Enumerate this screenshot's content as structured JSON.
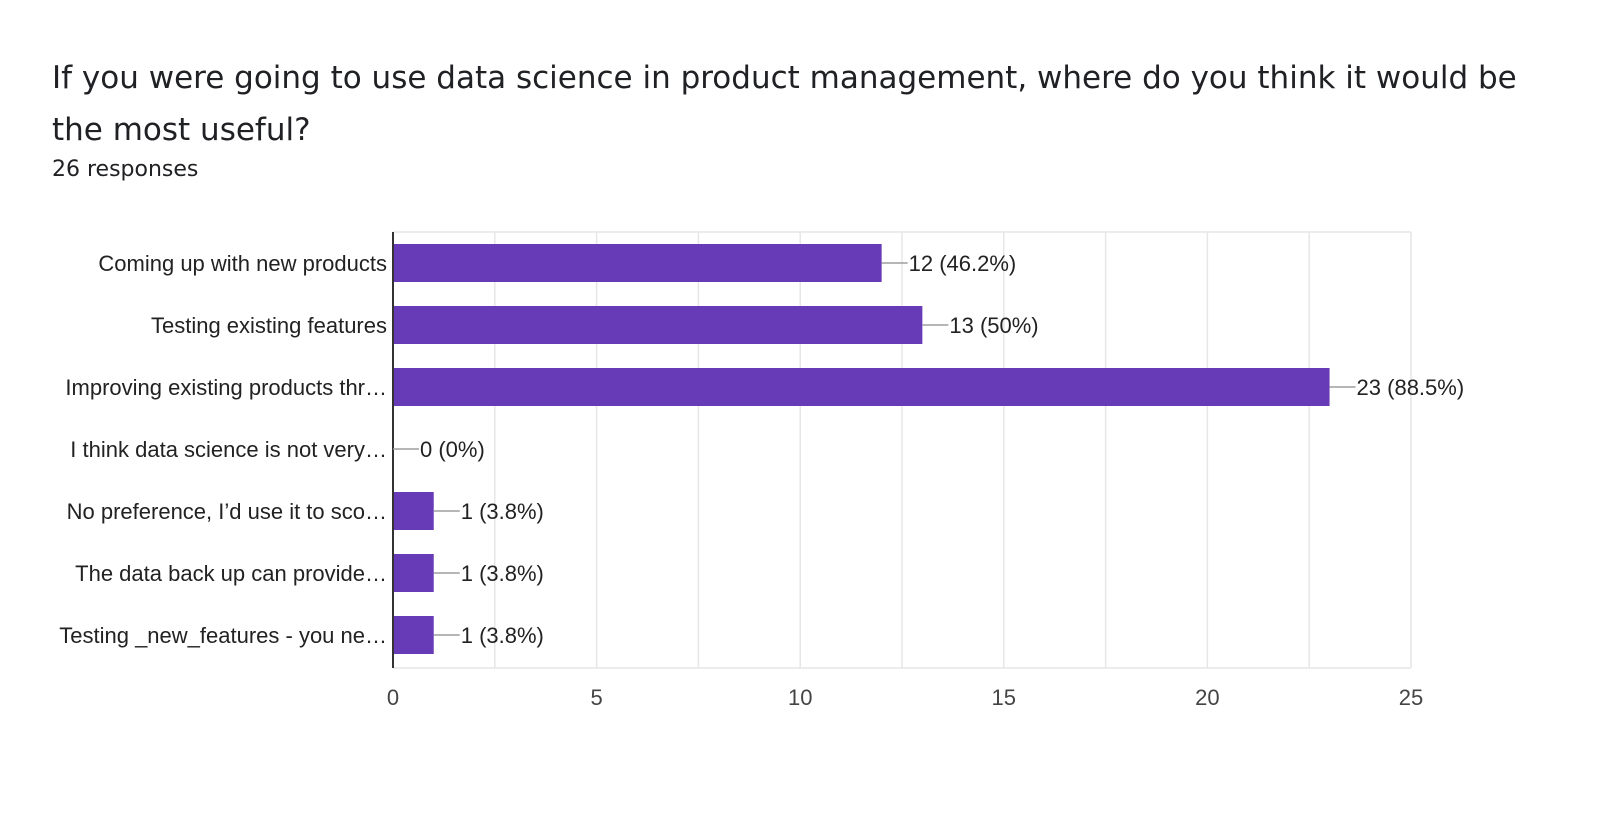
{
  "question": {
    "title": "If you were going to use data science in product management, where do you think it would be the most useful?",
    "responses": "26 responses"
  },
  "colors": {
    "bar": "#673ab7",
    "grid": "#e6e6e6",
    "axis": "#333333",
    "leader": "#9e9e9e",
    "text": "#222222"
  },
  "chart_data": {
    "type": "bar",
    "orientation": "horizontal",
    "title": "If you were going to use data science in product management, where do you think it would be the most useful?",
    "subtitle": "26 responses",
    "categories": [
      "Coming up with new products",
      "Testing existing features",
      "Improving existing products thr…",
      "I think data science is not very…",
      "No preference, I’d use it to sco…",
      "The data back up can provide…",
      "Testing _new_features - you ne…"
    ],
    "values": [
      12,
      13,
      23,
      0,
      1,
      1,
      1
    ],
    "data_labels": [
      "12 (46.2%)",
      "13 (50%)",
      "23 (88.5%)",
      "0 (0%)",
      "1 (3.8%)",
      "1 (3.8%)",
      "1 (3.8%)"
    ],
    "xlim": [
      0,
      25
    ],
    "xticks": [
      0,
      5,
      10,
      15,
      20,
      25
    ],
    "xlabel": "",
    "ylabel": "",
    "grid": true
  }
}
